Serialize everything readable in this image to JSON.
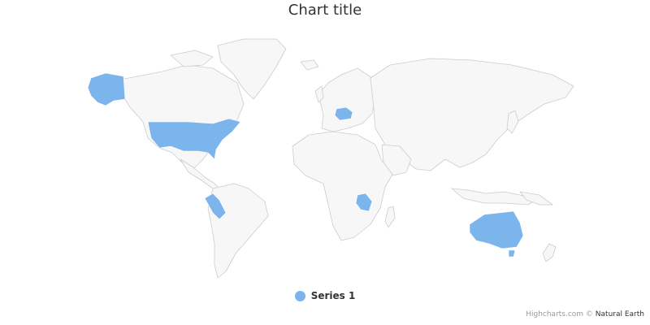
{
  "chart": {
    "title": "Chart title",
    "colors": {
      "land": "#f7f7f7",
      "border": "#cccccc",
      "highlight": "#7cb5ec"
    }
  },
  "chart_data": {
    "type": "map",
    "series": [
      {
        "name": "Series 1",
        "color": "#7cb5ec",
        "regions": [
          "United States",
          "Alaska",
          "Peru",
          "Poland",
          "Tanzania",
          "Australia"
        ]
      }
    ]
  },
  "legend": {
    "label": "Series 1"
  },
  "credits": {
    "prefix": "Highcharts.com © ",
    "source": "Natural Earth"
  }
}
